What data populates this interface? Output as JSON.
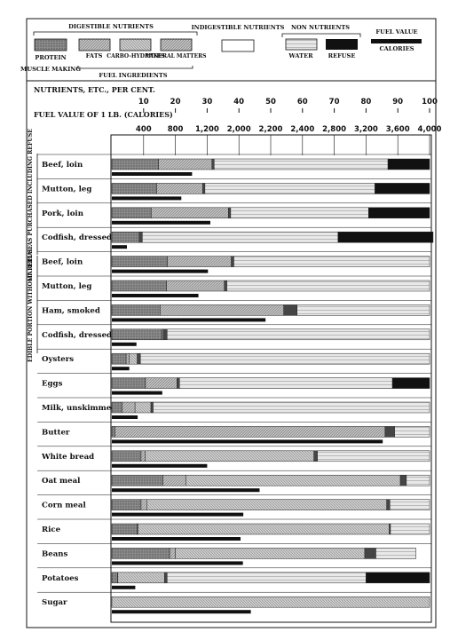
{
  "legend": {
    "digestible_label": "DIGESTIBLE NUTRIENTS",
    "indigestible_label": "INDIGESTIBLE NUTRIENTS",
    "nonnutrients_label": "NON NUTRIENTS",
    "fuel_value_label": "FUEL VALUE",
    "calories_label": "CALORIES",
    "protein": "PROTEIN",
    "fats": "FATS",
    "carbs": "CARBO-HYDRATES",
    "mineral": "MINERAL MATTERS",
    "water": "WATER",
    "refuse": "REFUSE",
    "muscle_making": "MUSCLE MAKING",
    "fuel_ingredients": "FUEL INGREDIENTS"
  },
  "axis": {
    "percent_label": "NUTRIENTS, ETC., PER CENT.",
    "fuel_label": "FUEL VALUE OF 1 LB. (CALORIES)"
  },
  "groups": {
    "purchased": "MATERIAL AS PURCHASED INCLUDING REFUSE",
    "edible": "EDIBLE PORTION WITHOUT REFUSE"
  },
  "colors": {
    "protein": "#8a8a8a",
    "fats": "#b2b2b2",
    "carbs": "#c2c2c2",
    "mineral": "#454545",
    "water": "#e8e8e8",
    "refuse": "#111111",
    "fuel": "#111111"
  },
  "chart_data": {
    "type": "bar",
    "stacked": true,
    "percent_ticks": [
      "10",
      "20",
      "30",
      "40",
      "50",
      "60",
      "70",
      "80",
      "90",
      "100"
    ],
    "percent_range": [
      0,
      100
    ],
    "fuel_ticks": [
      "400",
      "800",
      "1,200",
      "2,000",
      "2,200",
      "2,400",
      "2,800",
      "3,200",
      "3,600",
      "4,000"
    ],
    "fuel_range_calories": [
      0,
      4000
    ],
    "series": [
      {
        "key": "protein",
        "name": "PROTEIN"
      },
      {
        "key": "fats",
        "name": "FATS"
      },
      {
        "key": "carbs",
        "name": "CARBO-HYDRATES"
      },
      {
        "key": "mineral",
        "name": "MINERAL MATTERS"
      },
      {
        "key": "water",
        "name": "WATER"
      },
      {
        "key": "refuse",
        "name": "REFUSE"
      }
    ],
    "foods": [
      {
        "name": "Beef, loin",
        "group": "purchased",
        "protein": 14.7,
        "fats": 16.8,
        "carbs": 0,
        "mineral": 0.7,
        "water": 54.7,
        "refuse": 13.1,
        "fuel_calories": 1010
      },
      {
        "name": "Mutton, leg",
        "group": "purchased",
        "protein": 14.1,
        "fats": 14.5,
        "carbs": 0,
        "mineral": 0.7,
        "water": 53.5,
        "refuse": 17.2,
        "fuel_calories": 875
      },
      {
        "name": "Pork, loin",
        "group": "purchased",
        "protein": 12.4,
        "fats": 24.3,
        "carbs": 0,
        "mineral": 0.7,
        "water": 43.4,
        "refuse": 19.2,
        "fuel_calories": 1240
      },
      {
        "name": "Codfish, dressed",
        "group": "purchased",
        "protein": 8.6,
        "fats": 0,
        "carbs": 0,
        "mineral": 1.0,
        "water": 61.6,
        "refuse": 29.9,
        "fuel_calories": 190
      },
      {
        "name": "Beef, loin",
        "group": "edible",
        "protein": 17.5,
        "fats": 20.1,
        "carbs": 0,
        "mineral": 0.8,
        "water": 61.6,
        "refuse": 0,
        "fuel_calories": 1210
      },
      {
        "name": "Mutton, leg",
        "group": "edible",
        "protein": 17.2,
        "fats": 18.2,
        "carbs": 0,
        "mineral": 0.8,
        "water": 63.8,
        "refuse": 0,
        "fuel_calories": 1090
      },
      {
        "name": "Ham, smoked",
        "group": "edible",
        "protein": 15.2,
        "fats": 38.9,
        "carbs": 0,
        "mineral": 4.2,
        "water": 41.7,
        "refuse": 0,
        "fuel_calories": 1935
      },
      {
        "name": "Codfish, dressed",
        "group": "edible",
        "protein": 15.8,
        "fats": 0.4,
        "carbs": 0,
        "mineral": 1.2,
        "water": 82.6,
        "refuse": 0,
        "fuel_calories": 310
      },
      {
        "name": "Oysters",
        "group": "",
        "protein": 4.5,
        "fats": 1.0,
        "carbs": 2.5,
        "mineral": 1.0,
        "water": 91.0,
        "refuse": 0,
        "fuel_calories": 220
      },
      {
        "name": "Eggs",
        "group": "",
        "protein": 10.6,
        "fats": 9.9,
        "carbs": 0,
        "mineral": 0.8,
        "water": 67.0,
        "refuse": 11.7,
        "fuel_calories": 635
      },
      {
        "name": "Milk, unskimmed",
        "group": "",
        "protein": 3.3,
        "fats": 4.0,
        "carbs": 5.0,
        "mineral": 0.7,
        "water": 87.0,
        "refuse": 0,
        "fuel_calories": 325
      },
      {
        "name": "Butter",
        "group": "",
        "protein": 1.0,
        "fats": 85.0,
        "carbs": 0,
        "mineral": 3.0,
        "water": 11.0,
        "refuse": 0,
        "fuel_calories": 3410
      },
      {
        "name": "White bread",
        "group": "",
        "protein": 9.2,
        "fats": 1.3,
        "carbs": 53.1,
        "mineral": 1.1,
        "water": 35.3,
        "refuse": 0,
        "fuel_calories": 1200
      },
      {
        "name": "Oat meal",
        "group": "",
        "protein": 16.1,
        "fats": 7.2,
        "carbs": 67.5,
        "mineral": 1.9,
        "water": 7.3,
        "refuse": 0,
        "fuel_calories": 1860
      },
      {
        "name": "Corn meal",
        "group": "",
        "protein": 9.2,
        "fats": 1.9,
        "carbs": 75.4,
        "mineral": 1.0,
        "water": 12.5,
        "refuse": 0,
        "fuel_calories": 1655
      },
      {
        "name": "Rice",
        "group": "",
        "protein": 8.0,
        "fats": 0.3,
        "carbs": 79.0,
        "mineral": 0.4,
        "water": 12.3,
        "refuse": 0,
        "fuel_calories": 1620
      },
      {
        "name": "Beans",
        "group": "",
        "protein": 18.2,
        "fats": 1.8,
        "carbs": 59.6,
        "mineral": 3.5,
        "water": 12.6,
        "refuse": 0,
        "fuel_calories": 1650
      },
      {
        "name": "Potatoes",
        "group": "",
        "protein": 1.8,
        "fats": 0.1,
        "carbs": 14.7,
        "mineral": 0.8,
        "water": 62.6,
        "refuse": 20.0,
        "fuel_calories": 295
      },
      {
        "name": "Sugar",
        "group": "",
        "protein": 0,
        "fats": 0,
        "carbs": 100.0,
        "mineral": 0,
        "water": 0,
        "refuse": 0,
        "fuel_calories": 1750
      }
    ]
  }
}
